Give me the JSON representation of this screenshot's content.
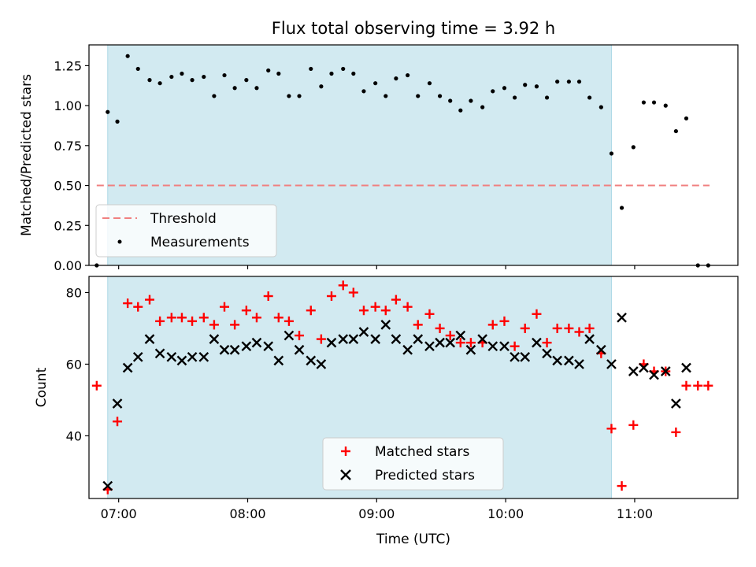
{
  "chart_data": [
    {
      "type": "scatter",
      "title": "Flux total observing time = 3.92 h",
      "xlabel": "",
      "ylabel": "Matched/Predicted stars",
      "xlim": [
        6.77,
        11.8
      ],
      "ylim": [
        0.0,
        1.38
      ],
      "x_ticks": [
        7,
        8,
        9,
        10,
        11
      ],
      "y_ticks": [
        0.0,
        0.25,
        0.5,
        0.75,
        1.0,
        1.25
      ],
      "y_tick_labels": [
        "0.00",
        "0.25",
        "0.50",
        "0.75",
        "1.00",
        "1.25"
      ],
      "shaded_span": [
        6.915,
        10.82
      ],
      "threshold": {
        "name": "Threshold",
        "value": 0.5,
        "x_range": [
          6.83,
          11.58
        ],
        "color": "#f08080"
      },
      "legend": {
        "position": "lower-left",
        "entries": [
          "Threshold",
          "Measurements"
        ]
      },
      "series": [
        {
          "name": "Measurements",
          "color": "#000000",
          "marker": "dot",
          "x": [
            6.83,
            6.915,
            6.99,
            7.07,
            7.15,
            7.24,
            7.32,
            7.41,
            7.49,
            7.57,
            7.66,
            7.74,
            7.82,
            7.9,
            7.99,
            8.07,
            8.16,
            8.24,
            8.32,
            8.4,
            8.49,
            8.57,
            8.65,
            8.74,
            8.82,
            8.9,
            8.99,
            9.07,
            9.15,
            9.24,
            9.32,
            9.41,
            9.49,
            9.57,
            9.65,
            9.73,
            9.82,
            9.9,
            9.99,
            10.07,
            10.15,
            10.24,
            10.32,
            10.4,
            10.49,
            10.57,
            10.65,
            10.74,
            10.82,
            10.9,
            10.99,
            11.07,
            11.15,
            11.24,
            11.32,
            11.4,
            11.49,
            11.57
          ],
          "y": [
            0.0,
            0.96,
            0.9,
            1.31,
            1.23,
            1.16,
            1.14,
            1.18,
            1.2,
            1.16,
            1.18,
            1.06,
            1.19,
            1.11,
            1.16,
            1.11,
            1.22,
            1.2,
            1.06,
            1.06,
            1.23,
            1.12,
            1.2,
            1.23,
            1.2,
            1.09,
            1.14,
            1.06,
            1.17,
            1.19,
            1.06,
            1.14,
            1.06,
            1.03,
            0.97,
            1.03,
            0.99,
            1.09,
            1.11,
            1.05,
            1.13,
            1.12,
            1.05,
            1.15,
            1.15,
            1.15,
            1.05,
            0.99,
            0.7,
            0.36,
            0.74,
            1.02,
            1.02,
            1.0,
            0.84,
            0.92,
            0.0,
            0.0
          ]
        }
      ]
    },
    {
      "type": "scatter",
      "title": "",
      "xlabel": "Time (UTC)",
      "ylabel": "Count",
      "xlim": [
        6.77,
        11.8
      ],
      "ylim": [
        22.5,
        84.5
      ],
      "x_ticks": [
        7,
        8,
        9,
        10,
        11
      ],
      "x_tick_labels": [
        "07:00",
        "08:00",
        "09:00",
        "10:00",
        "11:00"
      ],
      "y_ticks": [
        40,
        60,
        80
      ],
      "y_tick_labels": [
        "40",
        "60",
        "80"
      ],
      "shaded_span": [
        6.915,
        10.82
      ],
      "legend": {
        "position": "lower-center",
        "entries": [
          "Matched stars",
          "Predicted stars"
        ]
      },
      "series": [
        {
          "name": "Matched stars",
          "color": "#ff0000",
          "marker": "plus",
          "x": [
            6.83,
            6.915,
            6.99,
            7.07,
            7.15,
            7.24,
            7.32,
            7.41,
            7.49,
            7.57,
            7.66,
            7.74,
            7.82,
            7.9,
            7.99,
            8.07,
            8.16,
            8.24,
            8.32,
            8.4,
            8.49,
            8.57,
            8.65,
            8.74,
            8.82,
            8.9,
            8.99,
            9.07,
            9.15,
            9.24,
            9.32,
            9.41,
            9.49,
            9.57,
            9.65,
            9.73,
            9.82,
            9.9,
            9.99,
            10.07,
            10.15,
            10.24,
            10.32,
            10.4,
            10.49,
            10.57,
            10.65,
            10.74,
            10.82,
            10.9,
            10.99,
            11.07,
            11.15,
            11.24,
            11.32,
            11.4,
            11.49,
            11.57
          ],
          "y": [
            54,
            25,
            44,
            77,
            76,
            78,
            72,
            73,
            73,
            72,
            73,
            71,
            76,
            71,
            75,
            73,
            79,
            73,
            72,
            68,
            75,
            67,
            79,
            82,
            80,
            75,
            76,
            75,
            78,
            76,
            71,
            74,
            70,
            68,
            66,
            66,
            66,
            71,
            72,
            65,
            70,
            74,
            66,
            70,
            70,
            69,
            70,
            63,
            42,
            26,
            43,
            60,
            58,
            58,
            41,
            54,
            54,
            54
          ]
        },
        {
          "name": "Predicted stars",
          "color": "#000000",
          "marker": "x",
          "x": [
            6.915,
            6.99,
            7.07,
            7.15,
            7.24,
            7.32,
            7.41,
            7.49,
            7.57,
            7.66,
            7.74,
            7.82,
            7.9,
            7.99,
            8.07,
            8.16,
            8.24,
            8.32,
            8.4,
            8.49,
            8.57,
            8.65,
            8.74,
            8.82,
            8.9,
            8.99,
            9.07,
            9.15,
            9.24,
            9.32,
            9.41,
            9.49,
            9.57,
            9.65,
            9.73,
            9.82,
            9.9,
            9.99,
            10.07,
            10.15,
            10.24,
            10.32,
            10.4,
            10.49,
            10.57,
            10.65,
            10.74,
            10.82,
            10.9,
            10.99,
            11.07,
            11.15,
            11.24,
            11.32,
            11.4
          ],
          "y": [
            26,
            49,
            59,
            62,
            67,
            63,
            62,
            61,
            62,
            62,
            67,
            64,
            64,
            65,
            66,
            65,
            61,
            68,
            64,
            61,
            60,
            66,
            67,
            67,
            69,
            67,
            71,
            67,
            64,
            67,
            65,
            66,
            66,
            68,
            64,
            67,
            65,
            65,
            62,
            62,
            66,
            63,
            61,
            61,
            60,
            67,
            64,
            60,
            73,
            58,
            59,
            57,
            58,
            49,
            59
          ]
        }
      ]
    }
  ]
}
